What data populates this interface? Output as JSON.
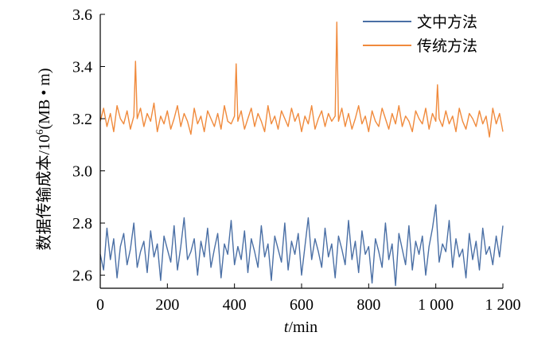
{
  "chart_data": {
    "type": "line",
    "title": "",
    "xlabel_italic": "t",
    "xlabel_rest": "/min",
    "ylabel_main": "数据传输成本/10",
    "ylabel_sup": "6",
    "ylabel_tail": "(MB • m)",
    "xlim": [
      0,
      1200
    ],
    "ylim": [
      2.55,
      3.6
    ],
    "x_ticks": [
      0,
      200,
      400,
      600,
      800,
      1000,
      1200
    ],
    "x_tick_labels": [
      "0",
      "200",
      "400",
      "600",
      "800",
      "1 000",
      "1 200"
    ],
    "y_ticks": [
      2.6,
      2.8,
      3.0,
      3.2,
      3.4,
      3.6
    ],
    "y_tick_labels": [
      "2.6",
      "2.8",
      "3.0",
      "3.2",
      "3.4",
      "3.6"
    ],
    "grid": false,
    "legend_position": "top-right",
    "series": [
      {
        "name": "文中方法",
        "color": "#4a6fa5",
        "x": [
          0,
          10,
          20,
          30,
          40,
          50,
          60,
          70,
          80,
          90,
          100,
          110,
          120,
          130,
          140,
          150,
          160,
          170,
          180,
          190,
          200,
          210,
          220,
          230,
          240,
          250,
          260,
          270,
          280,
          290,
          300,
          310,
          320,
          330,
          340,
          350,
          360,
          370,
          380,
          390,
          400,
          410,
          420,
          430,
          440,
          450,
          460,
          470,
          480,
          490,
          500,
          510,
          520,
          530,
          540,
          550,
          560,
          570,
          580,
          590,
          600,
          610,
          620,
          630,
          640,
          650,
          660,
          670,
          680,
          690,
          700,
          710,
          720,
          730,
          740,
          750,
          760,
          770,
          780,
          790,
          800,
          810,
          820,
          830,
          840,
          850,
          860,
          870,
          880,
          890,
          900,
          910,
          920,
          930,
          940,
          950,
          960,
          970,
          980,
          990,
          1000,
          1010,
          1020,
          1030,
          1040,
          1050,
          1060,
          1070,
          1080,
          1090,
          1100,
          1110,
          1120,
          1130,
          1140,
          1150,
          1160,
          1170,
          1180,
          1190,
          1200
        ],
        "values": [
          2.68,
          2.62,
          2.78,
          2.66,
          2.74,
          2.59,
          2.71,
          2.76,
          2.64,
          2.7,
          2.8,
          2.63,
          2.69,
          2.73,
          2.61,
          2.77,
          2.67,
          2.72,
          2.58,
          2.75,
          2.7,
          2.65,
          2.79,
          2.62,
          2.71,
          2.82,
          2.66,
          2.69,
          2.74,
          2.6,
          2.73,
          2.67,
          2.78,
          2.63,
          2.7,
          2.76,
          2.59,
          2.72,
          2.68,
          2.81,
          2.64,
          2.71,
          2.66,
          2.77,
          2.61,
          2.74,
          2.69,
          2.63,
          2.79,
          2.67,
          2.72,
          2.58,
          2.75,
          2.7,
          2.65,
          2.8,
          2.62,
          2.73,
          2.68,
          2.76,
          2.6,
          2.71,
          2.82,
          2.66,
          2.74,
          2.69,
          2.63,
          2.78,
          2.67,
          2.72,
          2.59,
          2.75,
          2.7,
          2.64,
          2.81,
          2.66,
          2.73,
          2.61,
          2.77,
          2.68,
          2.71,
          2.57,
          2.74,
          2.69,
          2.63,
          2.8,
          2.66,
          2.72,
          2.56,
          2.76,
          2.7,
          2.64,
          2.79,
          2.62,
          2.73,
          2.68,
          2.75,
          2.6,
          2.71,
          2.78,
          2.87,
          2.65,
          2.72,
          2.69,
          2.81,
          2.63,
          2.74,
          2.67,
          2.7,
          2.59,
          2.76,
          2.66,
          2.73,
          2.62,
          2.78,
          2.68,
          2.71,
          2.64,
          2.75,
          2.67,
          2.79
        ]
      },
      {
        "name": "传统方法",
        "color": "#f08a3c",
        "x": [
          0,
          10,
          20,
          30,
          40,
          50,
          60,
          70,
          80,
          90,
          100,
          105,
          110,
          120,
          130,
          140,
          150,
          160,
          170,
          180,
          190,
          200,
          210,
          220,
          230,
          240,
          250,
          260,
          270,
          280,
          290,
          300,
          310,
          320,
          330,
          340,
          350,
          360,
          370,
          380,
          390,
          400,
          405,
          410,
          420,
          430,
          440,
          450,
          460,
          470,
          480,
          490,
          500,
          510,
          520,
          530,
          540,
          550,
          560,
          570,
          580,
          590,
          600,
          610,
          620,
          630,
          640,
          650,
          660,
          670,
          680,
          690,
          700,
          705,
          710,
          720,
          730,
          740,
          750,
          760,
          770,
          780,
          790,
          800,
          810,
          820,
          830,
          840,
          850,
          860,
          870,
          880,
          890,
          900,
          910,
          920,
          930,
          940,
          950,
          960,
          970,
          980,
          990,
          1000,
          1005,
          1010,
          1020,
          1030,
          1040,
          1050,
          1060,
          1070,
          1080,
          1090,
          1100,
          1110,
          1120,
          1130,
          1140,
          1150,
          1160,
          1170,
          1180,
          1190,
          1200
        ],
        "values": [
          3.19,
          3.24,
          3.17,
          3.22,
          3.15,
          3.25,
          3.2,
          3.18,
          3.23,
          3.16,
          3.21,
          3.42,
          3.2,
          3.24,
          3.17,
          3.22,
          3.19,
          3.26,
          3.15,
          3.21,
          3.18,
          3.23,
          3.16,
          3.2,
          3.25,
          3.17,
          3.22,
          3.19,
          3.14,
          3.24,
          3.18,
          3.21,
          3.15,
          3.23,
          3.2,
          3.17,
          3.22,
          3.16,
          3.25,
          3.19,
          3.18,
          3.21,
          3.41,
          3.19,
          3.23,
          3.16,
          3.2,
          3.24,
          3.17,
          3.22,
          3.19,
          3.15,
          3.25,
          3.18,
          3.21,
          3.16,
          3.23,
          3.2,
          3.17,
          3.24,
          3.19,
          3.22,
          3.15,
          3.21,
          3.18,
          3.25,
          3.16,
          3.2,
          3.23,
          3.17,
          3.22,
          3.19,
          3.21,
          3.57,
          3.19,
          3.24,
          3.17,
          3.22,
          3.16,
          3.2,
          3.25,
          3.18,
          3.21,
          3.15,
          3.23,
          3.19,
          3.17,
          3.24,
          3.2,
          3.16,
          3.22,
          3.18,
          3.25,
          3.17,
          3.21,
          3.19,
          3.15,
          3.23,
          3.2,
          3.18,
          3.24,
          3.16,
          3.22,
          3.19,
          3.33,
          3.2,
          3.17,
          3.23,
          3.18,
          3.21,
          3.15,
          3.24,
          3.19,
          3.16,
          3.22,
          3.2,
          3.17,
          3.23,
          3.18,
          3.21,
          3.13,
          3.24,
          3.18,
          3.22,
          3.15
        ]
      }
    ]
  }
}
